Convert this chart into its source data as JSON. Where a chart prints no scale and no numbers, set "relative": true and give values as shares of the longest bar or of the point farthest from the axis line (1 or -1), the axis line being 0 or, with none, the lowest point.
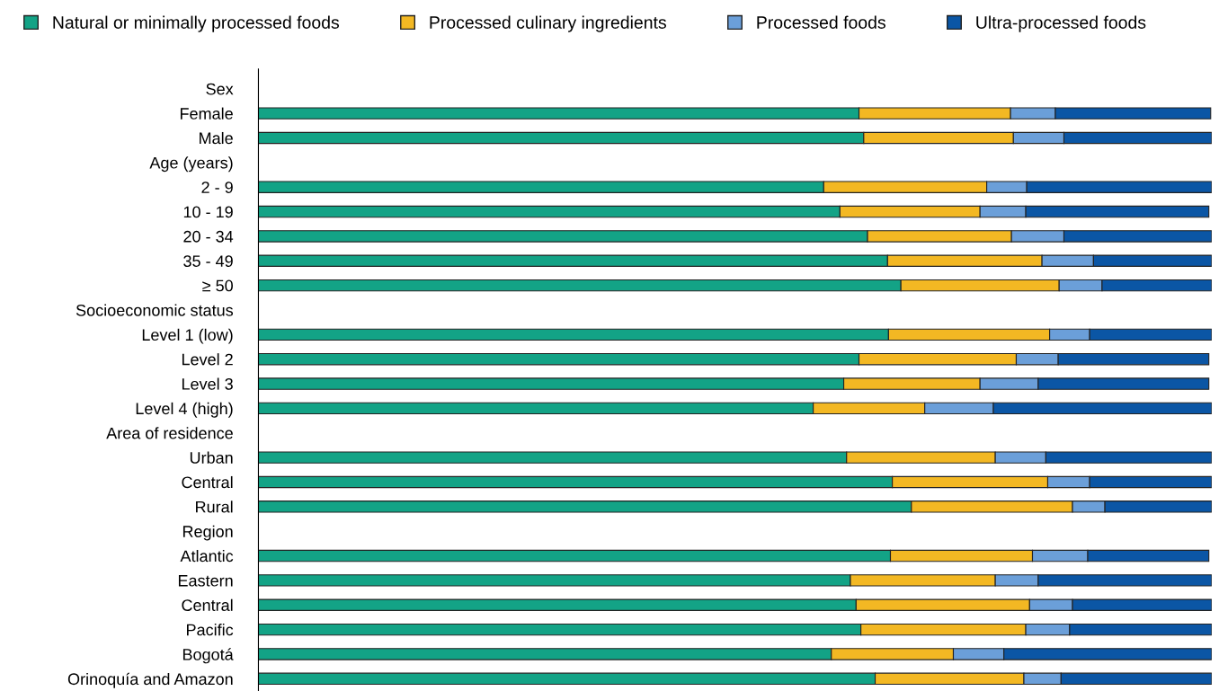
{
  "chart_data": {
    "type": "bar",
    "orientation": "horizontal",
    "stacked": true,
    "relative": true,
    "legend": "top",
    "grid": false,
    "categories": [
      "Sex",
      "Female",
      "Male",
      "Age (years)",
      "2 - 9",
      "10 - 19",
      "20 - 34",
      "35 - 49",
      "≥ 50",
      "Socioeconomic status",
      "Level 1 (low)",
      "Level 2",
      "Level 3",
      "Level 4 (high)",
      "Area of residence",
      "Urban",
      "Central",
      "Rural",
      "Region",
      "Atlantic",
      "Eastern",
      "Central",
      "Pacific",
      "Bogotá",
      "Orinoquía and Amazon"
    ],
    "series": [
      {
        "name": "Natural or minimally processed foods",
        "color": "#13a386",
        "values": [
          null,
          0.63,
          0.635,
          null,
          0.593,
          0.61,
          0.639,
          0.66,
          0.674,
          null,
          0.661,
          0.63,
          0.614,
          0.582,
          null,
          0.617,
          0.665,
          0.685,
          null,
          0.663,
          0.621,
          0.627,
          0.632,
          0.601,
          0.647
        ]
      },
      {
        "name": "Processed culinary ingredients",
        "color": "#f3b823",
        "values": [
          null,
          0.159,
          0.157,
          null,
          0.171,
          0.147,
          0.151,
          0.162,
          0.166,
          null,
          0.169,
          0.165,
          0.143,
          0.117,
          null,
          0.156,
          0.163,
          0.169,
          null,
          0.149,
          0.152,
          0.182,
          0.173,
          0.128,
          0.156
        ]
      },
      {
        "name": "Processed foods",
        "color": "#6b9fd9",
        "values": [
          null,
          0.047,
          0.053,
          null,
          0.042,
          0.048,
          0.055,
          0.054,
          0.045,
          null,
          0.042,
          0.044,
          0.061,
          0.072,
          null,
          0.053,
          0.044,
          0.034,
          null,
          0.058,
          0.045,
          0.045,
          0.046,
          0.053,
          0.039
        ]
      },
      {
        "name": "Ultra-processed foods",
        "color": "#0b56a5",
        "values": [
          null,
          0.163,
          0.155,
          null,
          0.194,
          0.192,
          0.155,
          0.124,
          0.115,
          null,
          0.128,
          0.158,
          0.179,
          0.229,
          null,
          0.174,
          0.128,
          0.112,
          null,
          0.127,
          0.182,
          0.146,
          0.149,
          0.218,
          0.158
        ]
      }
    ]
  }
}
